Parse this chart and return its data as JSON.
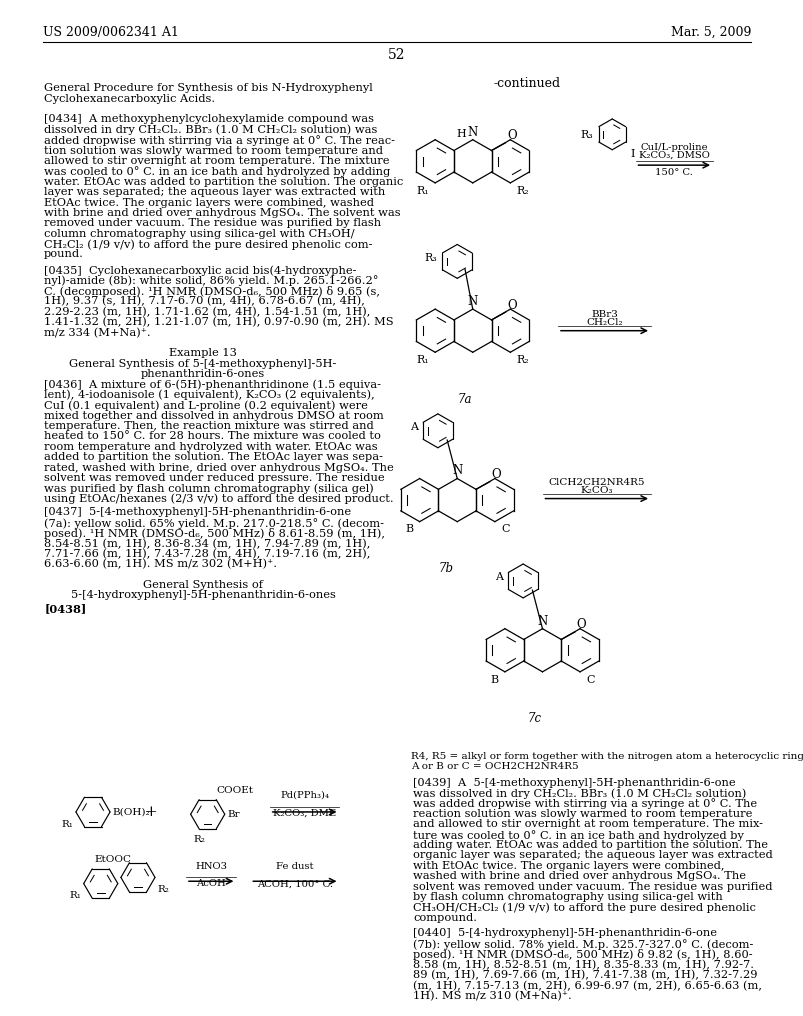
{
  "background_color": "#ffffff",
  "header_left": "US 2009/0062341 A1",
  "header_right": "Mar. 5, 2009",
  "page_number": "52"
}
